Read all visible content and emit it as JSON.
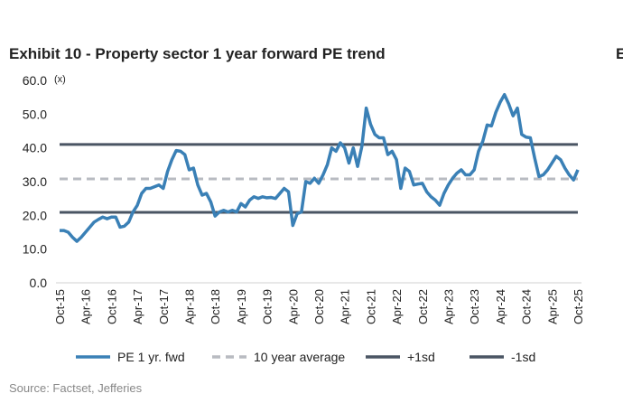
{
  "chart_data": {
    "type": "line",
    "title": "Exhibit 10 - Property sector 1 year forward PE trend",
    "adjacent_title": "E",
    "y_unit": "(x)",
    "source": "Source: Factset, Jefferies",
    "categories": [
      "Oct-15",
      null,
      null,
      null,
      null,
      null,
      "Apr-16",
      null,
      null,
      null,
      null,
      null,
      "Oct-16",
      null,
      null,
      null,
      null,
      null,
      "Apr-17",
      null,
      null,
      null,
      null,
      null,
      "Oct-17",
      null,
      null,
      null,
      null,
      null,
      "Apr-18",
      null,
      null,
      null,
      null,
      null,
      "Oct-18",
      null,
      null,
      null,
      null,
      null,
      "Apr-19",
      null,
      null,
      null,
      null,
      null,
      "Oct-19",
      null,
      null,
      null,
      null,
      null,
      "Apr-20",
      null,
      null,
      null,
      null,
      null,
      "Oct-20",
      null,
      null,
      null,
      null,
      null,
      "Apr-21",
      null,
      null,
      null,
      null,
      null,
      "Oct-21",
      null,
      null,
      null,
      null,
      null,
      "Apr-22",
      null,
      null,
      null,
      null,
      null,
      "Oct-22",
      null,
      null,
      null,
      null,
      null,
      "Apr-23",
      null,
      null,
      null,
      null,
      null,
      "Oct-23",
      null,
      null,
      null,
      null,
      null,
      "Apr-24",
      null,
      null,
      null,
      null,
      null,
      "Oct-24",
      null,
      null,
      null,
      null,
      null,
      "Apr-25",
      null,
      null,
      null,
      null,
      null,
      "Oct-25"
    ],
    "series": [
      {
        "name": "PE 1 yr. fwd",
        "color": "#3a80b6",
        "values": [
          15.5,
          15.5,
          15,
          13.5,
          12.3,
          13.5,
          15,
          16.5,
          18,
          18.8,
          19.5,
          19,
          19.5,
          19.5,
          16.5,
          16.8,
          18,
          21,
          23,
          26.5,
          28,
          28,
          28.5,
          29,
          28,
          33,
          36.5,
          39.2,
          39,
          38,
          33.5,
          34,
          29,
          26,
          26.5,
          24,
          19.8,
          21,
          21.5,
          21,
          21.5,
          21,
          23.5,
          22.5,
          24.5,
          25.5,
          25,
          25.5,
          25.2,
          25.3,
          25,
          26.5,
          28,
          27,
          17,
          20.5,
          21,
          30,
          29.5,
          31,
          29.5,
          32,
          35,
          40,
          39,
          41.5,
          40,
          35.5,
          40,
          34.5,
          40.5,
          51.8,
          47,
          44,
          43,
          43,
          38,
          39,
          36.5,
          28,
          34,
          33,
          29,
          29.3,
          29.5,
          27,
          25.5,
          24.5,
          23,
          26.5,
          29,
          31,
          32.5,
          33.5,
          32,
          32,
          33.5,
          39,
          42,
          46.8,
          46.5,
          50.5,
          53.5,
          55.8,
          53,
          49.5,
          51.8,
          44,
          43.2,
          43,
          37,
          31.5,
          32,
          33.5,
          35.5,
          37.5,
          36.5,
          34,
          32,
          30.5,
          33.5
        ]
      }
    ],
    "reference_lines": [
      {
        "name": "10 year average",
        "color": "#b8bbc1",
        "value": 30.8,
        "dashed": true
      },
      {
        "name": "+1sd",
        "color": "#4a5563",
        "value": 41,
        "dashed": false
      },
      {
        "name": "-1sd",
        "color": "#4a5563",
        "value": 20.9,
        "dashed": false
      }
    ],
    "ylim": [
      0,
      60
    ],
    "yticks": [
      {
        "value": 0,
        "label": "0.0"
      },
      {
        "value": 10,
        "label": "10.0"
      },
      {
        "value": 20,
        "label": "20.0"
      },
      {
        "value": 30,
        "label": "30.0"
      },
      {
        "value": 40,
        "label": "40.0"
      },
      {
        "value": 50,
        "label": "50.0"
      },
      {
        "value": 60,
        "label": "60.0"
      }
    ],
    "grid": false,
    "legend": "bottom"
  }
}
